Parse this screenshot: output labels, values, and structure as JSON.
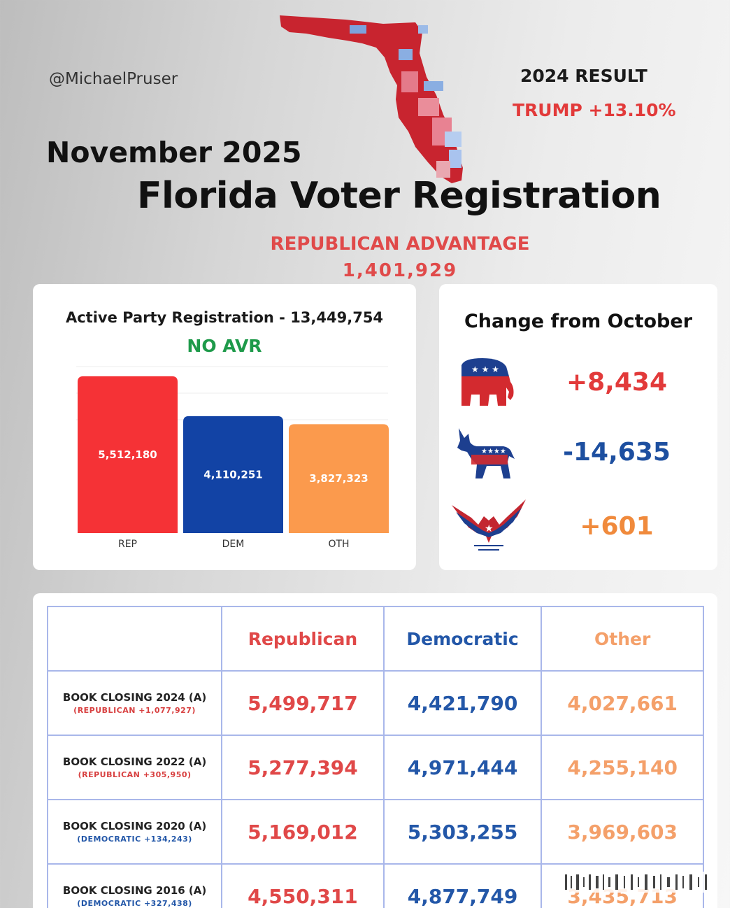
{
  "header": {
    "handle": "@MichaelPruser",
    "month": "November 2025",
    "title": "Florida Voter Registration",
    "result_label": "2024 RESULT",
    "result_value": "TRUMP +13.10%",
    "advantage_label": "REPUBLICAN ADVANTAGE",
    "advantage_value": "1,401,929"
  },
  "colors": {
    "rep": "#f53236",
    "dem": "#1243a5",
    "oth": "#fb9a4d",
    "green": "#1e9a4a"
  },
  "chart_data": {
    "type": "bar",
    "title": "Active Party Registration - 13,449,754",
    "subtitle": "NO AVR",
    "categories": [
      "REP",
      "DEM",
      "OTH"
    ],
    "values": [
      5512180,
      4110251,
      3827323
    ],
    "value_labels": [
      "5,512,180",
      "4,110,251",
      "3,827,323"
    ],
    "ylim": [
      0,
      6000000
    ],
    "xlabel": "",
    "ylabel": ""
  },
  "change": {
    "title": "Change from October",
    "rep": "+8,434",
    "dem": "-14,635",
    "oth": "+601",
    "icons": [
      "republican-elephant-icon",
      "democrat-donkey-icon",
      "eagle-icon"
    ]
  },
  "table": {
    "headers": [
      "",
      "Republican",
      "Democratic",
      "Other"
    ],
    "rows": [
      {
        "label": "BOOK CLOSING 2024 (A)",
        "sub": "(REPUBLICAN +1,077,927)",
        "party": "rep",
        "rep": "5,499,717",
        "dem": "4,421,790",
        "oth": "4,027,661"
      },
      {
        "label": "BOOK CLOSING 2022 (A)",
        "sub": "(REPUBLICAN +305,950)",
        "party": "rep",
        "rep": "5,277,394",
        "dem": "4,971,444",
        "oth": "4,255,140"
      },
      {
        "label": "BOOK CLOSING 2020 (A)",
        "sub": "(DEMOCRATIC +134,243)",
        "party": "dem",
        "rep": "5,169,012",
        "dem": "5,303,255",
        "oth": "3,969,603"
      },
      {
        "label": "BOOK CLOSING 2016 (A)",
        "sub": "(DEMOCRATIC +327,438)",
        "party": "dem",
        "rep": "4,550,311",
        "dem": "4,877,749",
        "oth": "3,435,713"
      }
    ]
  }
}
